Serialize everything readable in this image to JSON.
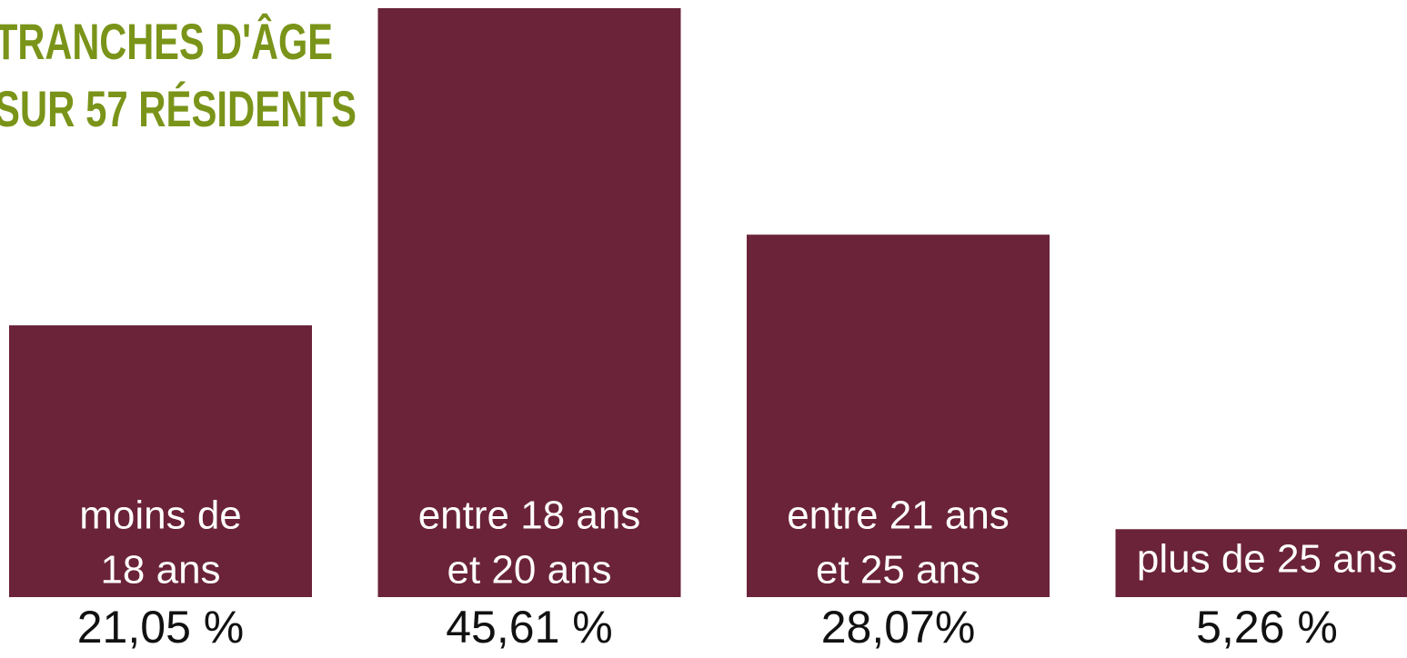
{
  "chart_data": {
    "type": "bar",
    "title": [
      "TRANCHES D'ÂGE",
      "SUR 57 RÉSIDENTS"
    ],
    "categories": [
      [
        "moins de",
        "18 ans"
      ],
      [
        "entre 18 ans",
        "et 20 ans"
      ],
      [
        "entre 21 ans",
        "et 25 ans"
      ],
      [
        "plus de 25 ans"
      ]
    ],
    "values": [
      21.05,
      45.61,
      28.07,
      5.26
    ],
    "value_labels": [
      "21,05 %",
      "45,61 %",
      "28,07%",
      "5,26 %"
    ],
    "color": "#6b2339",
    "title_color": "#7a9419"
  }
}
